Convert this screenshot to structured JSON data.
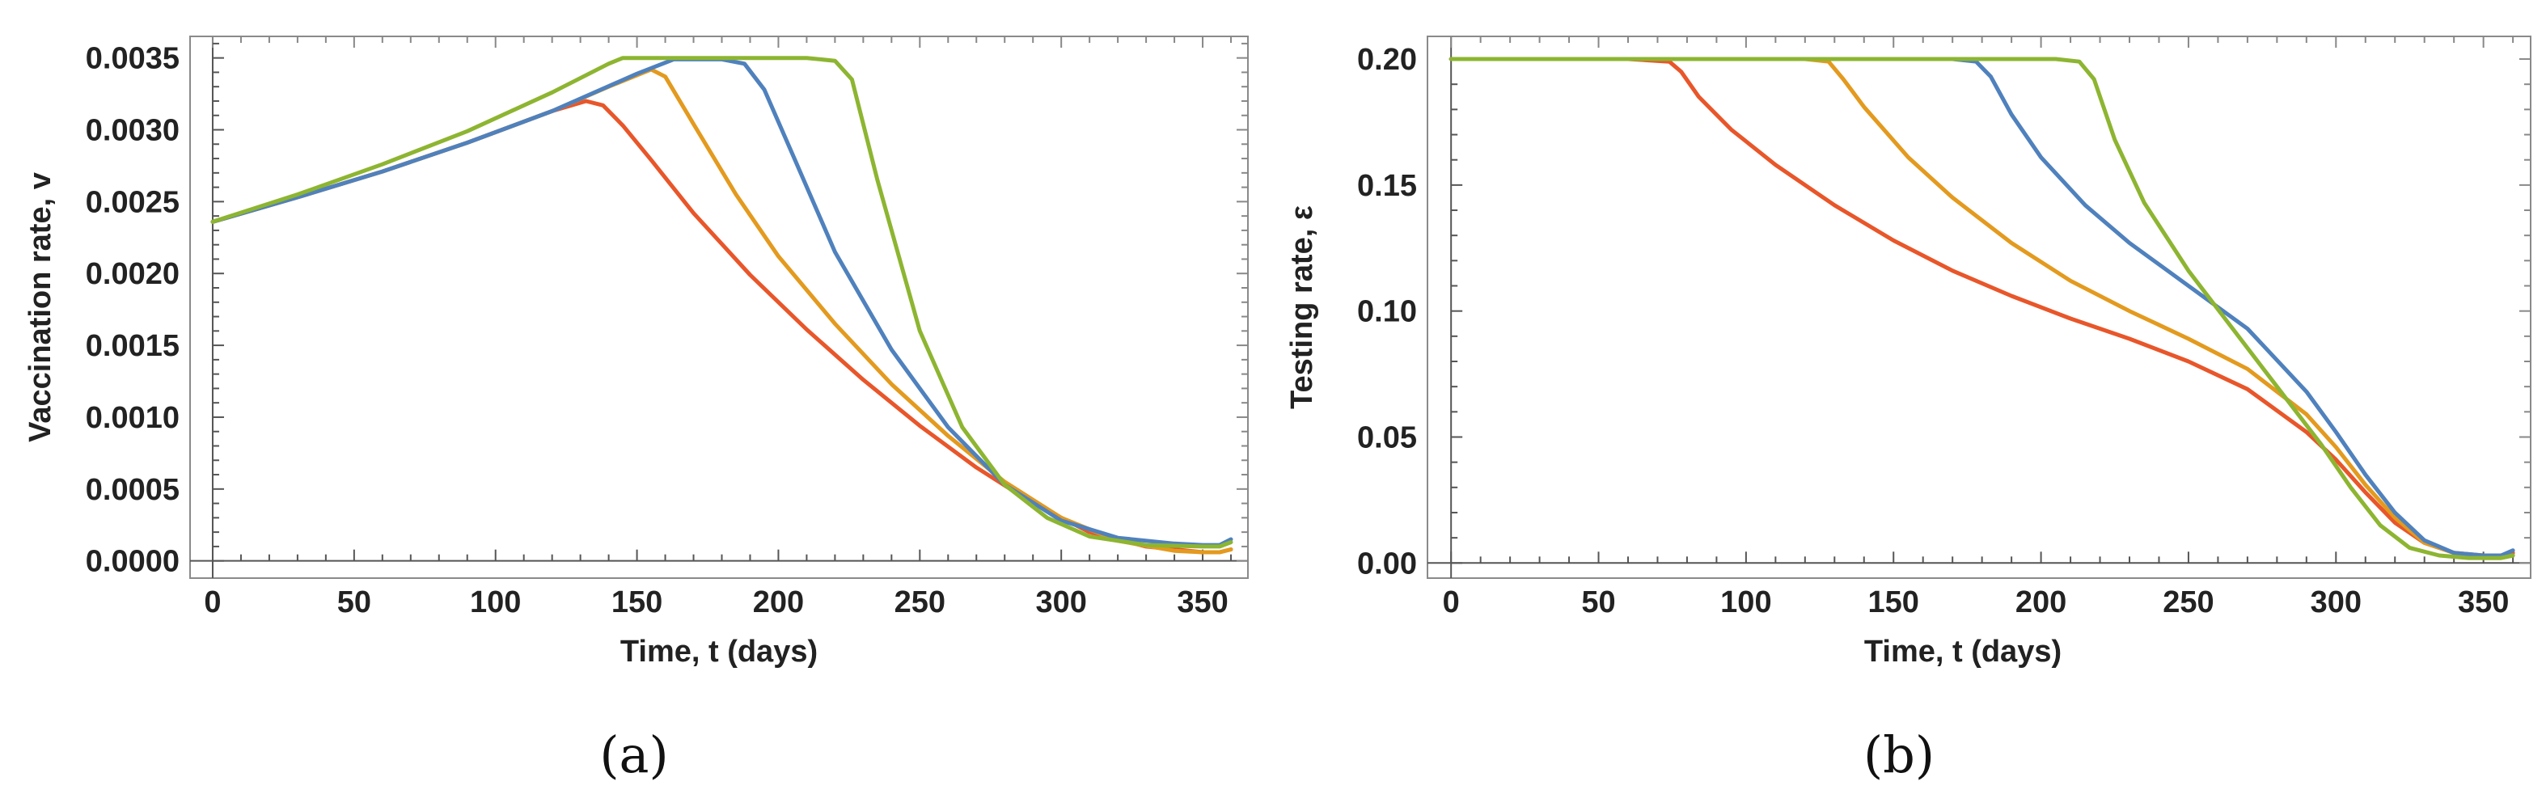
{
  "chart_data": [
    {
      "type": "line",
      "caption": "(a)",
      "xlabel": "Time, t (days)",
      "ylabel": "Vaccination rate, v",
      "xlim": [
        -8,
        366
      ],
      "ylim": [
        -0.00012,
        0.00365
      ],
      "xticks": [
        0,
        50,
        100,
        150,
        200,
        250,
        300,
        350
      ],
      "xtick_labels": [
        "0",
        "50",
        "100",
        "150",
        "200",
        "250",
        "300",
        "350"
      ],
      "yticks": [
        0.0,
        0.0005,
        0.001,
        0.0015,
        0.002,
        0.0025,
        0.003,
        0.0035
      ],
      "ytick_labels": [
        "0.0000",
        "0.0005",
        "0.0010",
        "0.0015",
        "0.0020",
        "0.0025",
        "0.0030",
        "0.0035"
      ],
      "series": [
        {
          "name": "red",
          "color": "#E8562A",
          "x": [
            0,
            30,
            60,
            90,
            120,
            132,
            138,
            145,
            155,
            170,
            190,
            210,
            230,
            250,
            270,
            290,
            310,
            330,
            350,
            356,
            360
          ],
          "y": [
            0.00236,
            0.00253,
            0.00271,
            0.00291,
            0.00313,
            0.0032,
            0.00317,
            0.00303,
            0.00279,
            0.00242,
            0.00199,
            0.00161,
            0.00126,
            0.00094,
            0.00065,
            0.0004,
            0.0002,
            0.0001,
            6e-05,
            6e-05,
            8e-05
          ]
        },
        {
          "name": "orange",
          "color": "#E39A1E",
          "x": [
            0,
            30,
            60,
            90,
            120,
            140,
            155,
            160,
            170,
            185,
            200,
            220,
            240,
            260,
            280,
            300,
            320,
            340,
            350,
            356,
            360
          ],
          "y": [
            0.00236,
            0.00253,
            0.00271,
            0.00291,
            0.00313,
            0.0033,
            0.00342,
            0.00337,
            0.00304,
            0.00255,
            0.00212,
            0.00165,
            0.00123,
            0.00087,
            0.00055,
            0.0003,
            0.00014,
            7e-05,
            6e-05,
            6e-05,
            8e-05
          ]
        },
        {
          "name": "blue",
          "color": "#4F81BD",
          "x": [
            0,
            30,
            60,
            90,
            120,
            150,
            163,
            180,
            188,
            195,
            205,
            220,
            240,
            260,
            280,
            300,
            320,
            340,
            350,
            356,
            360
          ],
          "y": [
            0.00236,
            0.00253,
            0.00271,
            0.00291,
            0.00313,
            0.00339,
            0.00349,
            0.00349,
            0.00346,
            0.00328,
            0.00283,
            0.00215,
            0.00147,
            0.00093,
            0.00053,
            0.00028,
            0.00016,
            0.00012,
            0.00011,
            0.00011,
            0.00015
          ]
        },
        {
          "name": "green",
          "color": "#8DB531",
          "x": [
            0,
            30,
            60,
            90,
            120,
            140,
            145,
            180,
            210,
            220,
            226,
            235,
            250,
            265,
            280,
            295,
            310,
            330,
            350,
            356,
            360
          ],
          "y": [
            0.00236,
            0.00255,
            0.00276,
            0.00299,
            0.00326,
            0.00346,
            0.0035,
            0.0035,
            0.0035,
            0.00348,
            0.00335,
            0.00265,
            0.0016,
            0.00093,
            0.00053,
            0.0003,
            0.00017,
            0.00011,
            0.0001,
            0.0001,
            0.00013
          ]
        }
      ]
    },
    {
      "type": "line",
      "caption": "(b)",
      "xlabel": "Time, t (days)",
      "ylabel": "Testing rate, ε",
      "xlim": [
        -8,
        366
      ],
      "ylim": [
        -0.006,
        0.209
      ],
      "xticks": [
        0,
        50,
        100,
        150,
        200,
        250,
        300,
        350
      ],
      "xtick_labels": [
        "0",
        "50",
        "100",
        "150",
        "200",
        "250",
        "300",
        "350"
      ],
      "yticks": [
        0.0,
        0.05,
        0.1,
        0.15,
        0.2
      ],
      "ytick_labels": [
        "0.00",
        "0.05",
        "0.10",
        "0.15",
        "0.20"
      ],
      "series": [
        {
          "name": "red",
          "color": "#E8562A",
          "x": [
            0,
            60,
            74,
            78,
            84,
            95,
            110,
            130,
            150,
            170,
            190,
            210,
            230,
            250,
            270,
            290,
            300,
            310,
            320,
            330,
            340,
            350,
            356,
            360
          ],
          "y": [
            0.2,
            0.2,
            0.199,
            0.195,
            0.185,
            0.172,
            0.158,
            0.142,
            0.128,
            0.116,
            0.106,
            0.097,
            0.089,
            0.08,
            0.069,
            0.052,
            0.041,
            0.028,
            0.016,
            0.008,
            0.004,
            0.003,
            0.003,
            0.004
          ]
        },
        {
          "name": "orange",
          "color": "#E39A1E",
          "x": [
            0,
            120,
            128,
            133,
            140,
            155,
            170,
            190,
            210,
            230,
            250,
            270,
            290,
            300,
            310,
            320,
            330,
            340,
            350,
            356,
            360
          ],
          "y": [
            0.2,
            0.2,
            0.199,
            0.192,
            0.181,
            0.161,
            0.145,
            0.127,
            0.112,
            0.1,
            0.089,
            0.077,
            0.059,
            0.046,
            0.031,
            0.018,
            0.008,
            0.004,
            0.002,
            0.002,
            0.003
          ]
        },
        {
          "name": "blue",
          "color": "#4F81BD",
          "x": [
            0,
            170,
            178,
            183,
            190,
            200,
            215,
            230,
            250,
            270,
            290,
            300,
            310,
            320,
            330,
            340,
            350,
            356,
            360
          ],
          "y": [
            0.2,
            0.2,
            0.199,
            0.193,
            0.178,
            0.161,
            0.142,
            0.127,
            0.11,
            0.093,
            0.068,
            0.052,
            0.035,
            0.02,
            0.009,
            0.004,
            0.003,
            0.003,
            0.005
          ]
        },
        {
          "name": "green",
          "color": "#8DB531",
          "x": [
            0,
            205,
            213,
            218,
            225,
            235,
            250,
            265,
            280,
            295,
            305,
            315,
            325,
            335,
            345,
            352,
            356,
            360
          ],
          "y": [
            0.2,
            0.2,
            0.199,
            0.192,
            0.168,
            0.143,
            0.116,
            0.093,
            0.07,
            0.047,
            0.03,
            0.015,
            0.006,
            0.003,
            0.002,
            0.002,
            0.002,
            0.003
          ]
        }
      ]
    }
  ]
}
